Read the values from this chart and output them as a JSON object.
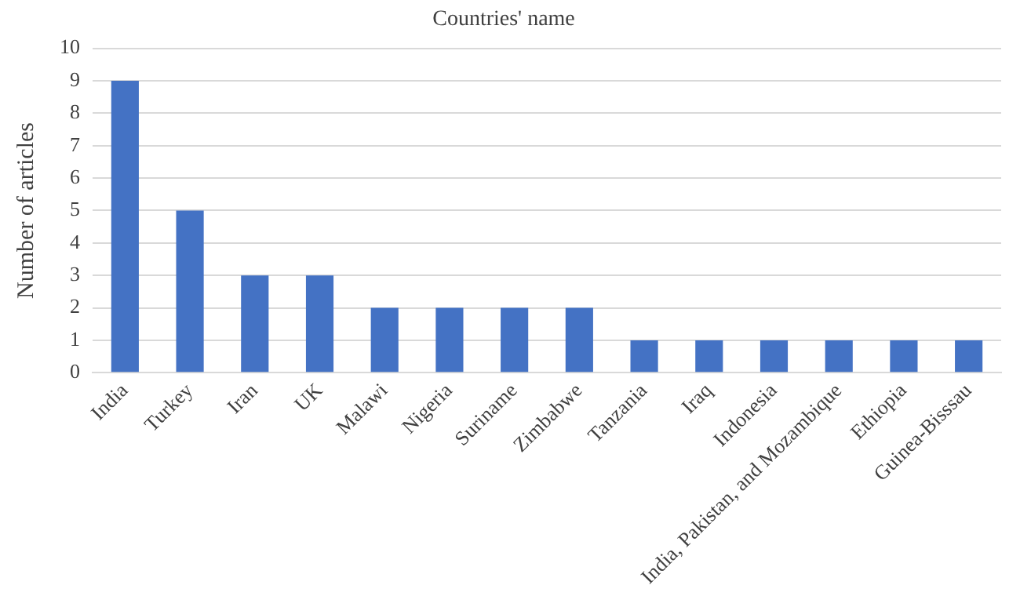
{
  "chart_data": {
    "type": "bar",
    "title": "Countries' name",
    "ylabel": "Number of articles",
    "categories": [
      "India",
      "Turkey",
      "Iran",
      "UK",
      "Malawi",
      "Nigeria",
      "Suriname",
      "Zimbabwe",
      "Tanzania",
      "Iraq",
      "Indonesia",
      "India, Pakistan, and Mozambique",
      "Ethiopia",
      "Guinea-Bisssau"
    ],
    "values": [
      9,
      5,
      3,
      3,
      2,
      2,
      2,
      2,
      1,
      1,
      1,
      1,
      1,
      1
    ],
    "color": "#4472c4",
    "ylim": [
      0,
      10
    ],
    "yticks": [
      0,
      1,
      2,
      3,
      4,
      5,
      6,
      7,
      8,
      9,
      10
    ],
    "grid": "y",
    "legend": false
  }
}
